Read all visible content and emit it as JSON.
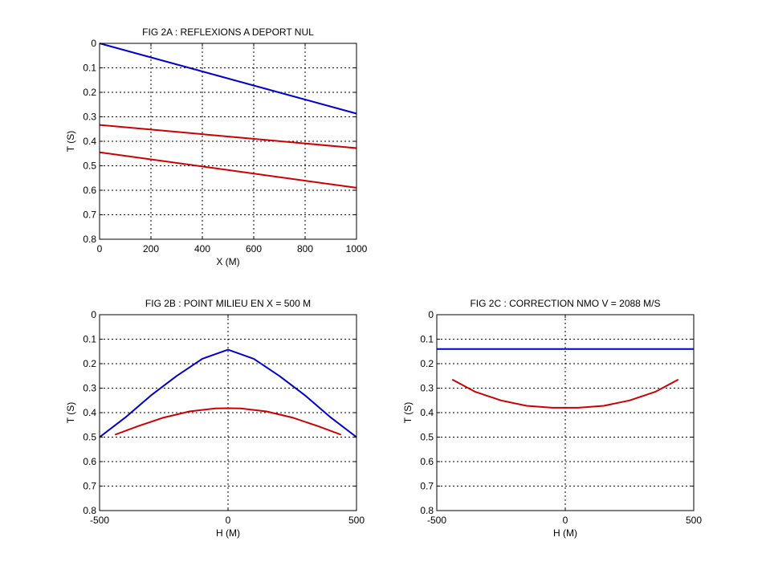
{
  "figure": {
    "background": "#ffffff"
  },
  "chart_data": [
    {
      "type": "line",
      "title": "FIG 2A : REFLEXIONS A DEPORT NUL",
      "xlabel": "X (M)",
      "ylabel": "T (S)",
      "xlim": [
        0,
        1000
      ],
      "ylim": [
        0,
        0.8
      ],
      "y_reversed": true,
      "grid": true,
      "xticks": [
        0,
        200,
        400,
        600,
        800,
        1000
      ],
      "xtick_labels": [
        "0",
        "200",
        "400",
        "600",
        "800",
        "1000"
      ],
      "yticks": [
        0,
        0.1,
        0.2,
        0.3,
        0.4,
        0.5,
        0.6,
        0.7,
        0.8
      ],
      "ytick_labels": [
        "0",
        "0.1",
        "0.2",
        "0.3",
        "0.4",
        "0.5",
        "0.6",
        "0.7",
        "0.8"
      ],
      "series": [
        {
          "color": "#0000cc",
          "x": [
            0,
            1000
          ],
          "y": [
            0,
            0.287
          ]
        },
        {
          "color": "#cc0000",
          "x": [
            0,
            1000
          ],
          "y": [
            0.333,
            0.428
          ]
        },
        {
          "color": "#cc0000",
          "x": [
            0,
            1000
          ],
          "y": [
            0.445,
            0.59
          ]
        }
      ]
    },
    {
      "type": "line",
      "title": "FIG 2B : POINT MILIEU EN X = 500 M",
      "xlabel": "H (M)",
      "ylabel": "T (S)",
      "xlim": [
        -500,
        500
      ],
      "ylim": [
        0,
        0.8
      ],
      "y_reversed": true,
      "grid": true,
      "xticks": [
        -500,
        0,
        500
      ],
      "xtick_labels": [
        "-500",
        "0",
        "500"
      ],
      "yticks": [
        0,
        0.1,
        0.2,
        0.3,
        0.4,
        0.5,
        0.6,
        0.7,
        0.8
      ],
      "ytick_labels": [
        "0",
        "0.1",
        "0.2",
        "0.3",
        "0.4",
        "0.5",
        "0.6",
        "0.7",
        "0.8"
      ],
      "series": [
        {
          "color": "#0000cc",
          "x": [
            -500,
            -400,
            -300,
            -200,
            -100,
            0,
            100,
            200,
            300,
            400,
            500
          ],
          "y": [
            0.5,
            0.42,
            0.33,
            0.25,
            0.18,
            0.143,
            0.18,
            0.25,
            0.33,
            0.42,
            0.5
          ]
        },
        {
          "color": "#cc0000",
          "x": [
            -440,
            -350,
            -250,
            -150,
            -50,
            0,
            50,
            150,
            250,
            350,
            440
          ],
          "y": [
            0.49,
            0.455,
            0.42,
            0.395,
            0.383,
            0.382,
            0.383,
            0.395,
            0.42,
            0.455,
            0.49
          ]
        }
      ]
    },
    {
      "type": "line",
      "title": "FIG 2C : CORRECTION NMO V =  2088 M/S",
      "xlabel": "H (M)",
      "ylabel": "T (S)",
      "xlim": [
        -500,
        500
      ],
      "ylim": [
        0,
        0.8
      ],
      "y_reversed": true,
      "grid": true,
      "xticks": [
        -500,
        0,
        500
      ],
      "xtick_labels": [
        "-500",
        "0",
        "500"
      ],
      "yticks": [
        0,
        0.1,
        0.2,
        0.3,
        0.4,
        0.5,
        0.6,
        0.7,
        0.8
      ],
      "ytick_labels": [
        "0",
        "0.1",
        "0.2",
        "0.3",
        "0.4",
        "0.5",
        "0.6",
        "0.7",
        "0.8"
      ],
      "series": [
        {
          "color": "#0000cc",
          "x": [
            -500,
            500
          ],
          "y": [
            0.14,
            0.14
          ]
        },
        {
          "color": "#cc0000",
          "x": [
            -440,
            -350,
            -250,
            -150,
            -50,
            0,
            50,
            150,
            250,
            350,
            440
          ],
          "y": [
            0.265,
            0.315,
            0.35,
            0.372,
            0.38,
            0.38,
            0.38,
            0.372,
            0.35,
            0.315,
            0.265
          ]
        }
      ]
    }
  ]
}
